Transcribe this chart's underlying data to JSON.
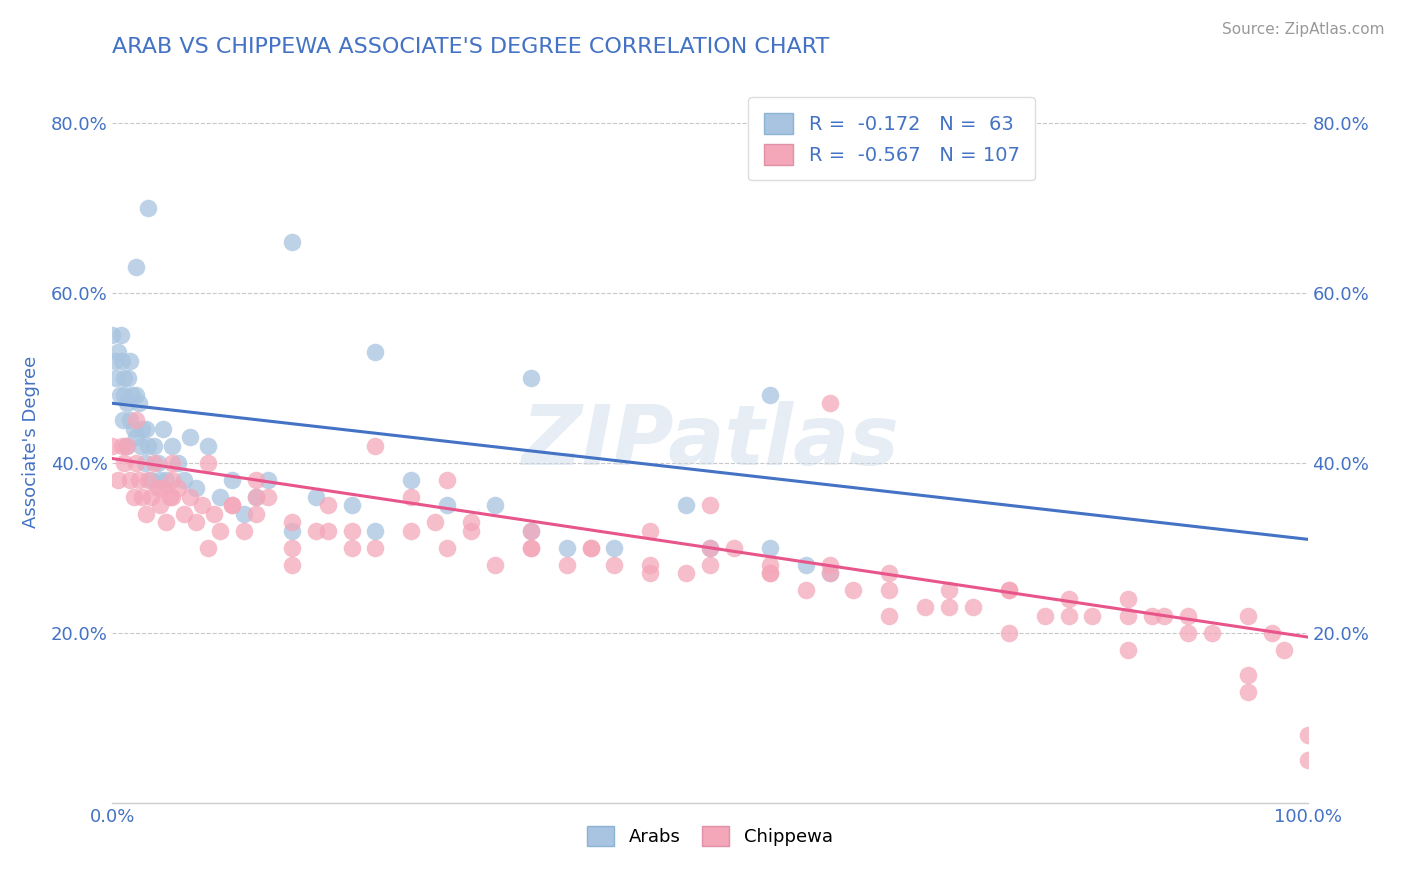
{
  "title": "ARAB VS CHIPPEWA ASSOCIATE'S DEGREE CORRELATION CHART",
  "source_text": "Source: ZipAtlas.com",
  "ylabel": "Associate's Degree",
  "watermark": "ZIPatlas",
  "arab_R": -0.172,
  "arab_N": 63,
  "chippewa_R": -0.567,
  "chippewa_N": 107,
  "xlim": [
    0.0,
    1.0
  ],
  "ylim": [
    0.0,
    0.85
  ],
  "arab_color": "#a8c4e0",
  "chippewa_color": "#f4a7b9",
  "arab_line_color": "#4472c4",
  "chippewa_line_color": "#e8558a",
  "title_color": "#4472c4",
  "axis_label_color": "#4472c4",
  "tick_label_color": "#4472c4",
  "background_color": "#ffffff",
  "grid_color": "#c8c8c8",
  "arab_line_x0": 0.0,
  "arab_line_y0": 0.47,
  "arab_line_x1": 1.0,
  "arab_line_y1": 0.31,
  "chip_line_x0": 0.0,
  "chip_line_y0": 0.405,
  "chip_line_x1": 1.0,
  "chip_line_y1": 0.195,
  "arab_scatter_x": [
    0.0,
    0.002,
    0.003,
    0.005,
    0.006,
    0.007,
    0.008,
    0.009,
    0.01,
    0.01,
    0.011,
    0.012,
    0.013,
    0.015,
    0.015,
    0.016,
    0.018,
    0.02,
    0.02,
    0.022,
    0.024,
    0.025,
    0.027,
    0.028,
    0.03,
    0.032,
    0.035,
    0.038,
    0.04,
    0.042,
    0.045,
    0.05,
    0.055,
    0.06,
    0.065,
    0.07,
    0.08,
    0.09,
    0.1,
    0.11,
    0.12,
    0.13,
    0.15,
    0.17,
    0.2,
    0.22,
    0.25,
    0.28,
    0.32,
    0.35,
    0.38,
    0.42,
    0.48,
    0.5,
    0.55,
    0.58,
    0.6,
    0.02,
    0.03,
    0.15,
    0.22,
    0.35,
    0.55
  ],
  "arab_scatter_y": [
    0.55,
    0.52,
    0.5,
    0.53,
    0.48,
    0.55,
    0.52,
    0.45,
    0.5,
    0.48,
    0.42,
    0.47,
    0.5,
    0.45,
    0.52,
    0.48,
    0.44,
    0.48,
    0.43,
    0.47,
    0.42,
    0.44,
    0.4,
    0.44,
    0.42,
    0.38,
    0.42,
    0.4,
    0.38,
    0.44,
    0.38,
    0.42,
    0.4,
    0.38,
    0.43,
    0.37,
    0.42,
    0.36,
    0.38,
    0.34,
    0.36,
    0.38,
    0.32,
    0.36,
    0.35,
    0.32,
    0.38,
    0.35,
    0.35,
    0.32,
    0.3,
    0.3,
    0.35,
    0.3,
    0.3,
    0.28,
    0.27,
    0.63,
    0.7,
    0.66,
    0.53,
    0.5,
    0.48
  ],
  "chippewa_scatter_x": [
    0.0,
    0.005,
    0.008,
    0.01,
    0.012,
    0.015,
    0.018,
    0.02,
    0.022,
    0.025,
    0.028,
    0.03,
    0.032,
    0.035,
    0.038,
    0.04,
    0.042,
    0.045,
    0.048,
    0.05,
    0.055,
    0.06,
    0.065,
    0.07,
    0.075,
    0.08,
    0.085,
    0.09,
    0.1,
    0.11,
    0.12,
    0.13,
    0.15,
    0.17,
    0.18,
    0.2,
    0.22,
    0.25,
    0.27,
    0.28,
    0.3,
    0.32,
    0.35,
    0.38,
    0.4,
    0.42,
    0.45,
    0.48,
    0.5,
    0.52,
    0.55,
    0.58,
    0.6,
    0.62,
    0.65,
    0.68,
    0.7,
    0.72,
    0.75,
    0.78,
    0.8,
    0.82,
    0.85,
    0.87,
    0.88,
    0.9,
    0.92,
    0.95,
    0.97,
    0.98,
    1.0,
    0.05,
    0.08,
    0.1,
    0.12,
    0.15,
    0.18,
    0.2,
    0.25,
    0.3,
    0.35,
    0.4,
    0.45,
    0.5,
    0.55,
    0.6,
    0.65,
    0.7,
    0.75,
    0.8,
    0.85,
    0.9,
    0.95,
    1.0,
    0.02,
    0.05,
    0.12,
    0.15,
    0.22,
    0.28,
    0.35,
    0.45,
    0.55,
    0.65,
    0.75,
    0.85,
    0.95,
    0.5,
    0.6
  ],
  "chippewa_scatter_y": [
    0.42,
    0.38,
    0.42,
    0.4,
    0.42,
    0.38,
    0.36,
    0.4,
    0.38,
    0.36,
    0.34,
    0.38,
    0.36,
    0.4,
    0.37,
    0.35,
    0.37,
    0.33,
    0.36,
    0.4,
    0.37,
    0.34,
    0.36,
    0.33,
    0.35,
    0.3,
    0.34,
    0.32,
    0.35,
    0.32,
    0.34,
    0.36,
    0.3,
    0.32,
    0.35,
    0.32,
    0.3,
    0.32,
    0.33,
    0.3,
    0.32,
    0.28,
    0.3,
    0.28,
    0.3,
    0.28,
    0.28,
    0.27,
    0.28,
    0.3,
    0.27,
    0.25,
    0.27,
    0.25,
    0.27,
    0.23,
    0.25,
    0.23,
    0.25,
    0.22,
    0.24,
    0.22,
    0.24,
    0.22,
    0.22,
    0.22,
    0.2,
    0.22,
    0.2,
    0.18,
    0.08,
    0.38,
    0.4,
    0.35,
    0.36,
    0.28,
    0.32,
    0.3,
    0.36,
    0.33,
    0.3,
    0.3,
    0.32,
    0.3,
    0.28,
    0.28,
    0.25,
    0.23,
    0.25,
    0.22,
    0.22,
    0.2,
    0.15,
    0.05,
    0.45,
    0.36,
    0.38,
    0.33,
    0.42,
    0.38,
    0.32,
    0.27,
    0.27,
    0.22,
    0.2,
    0.18,
    0.13,
    0.35,
    0.47
  ]
}
